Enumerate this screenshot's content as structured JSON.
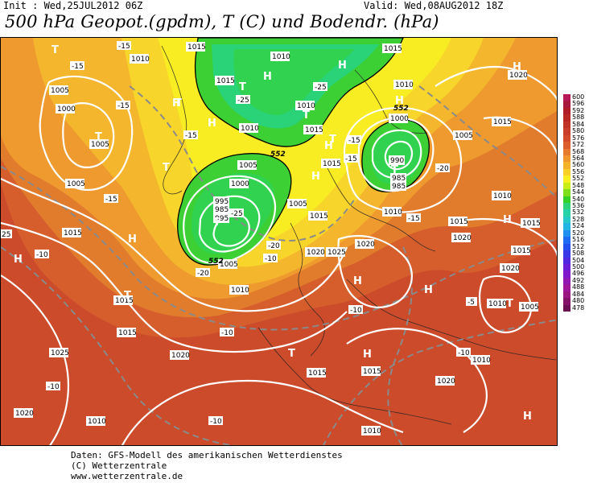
{
  "header": {
    "init": "Init : Wed,25JUL2012 06Z",
    "valid": "Valid: Wed,08AUG2012 18Z",
    "title": "500 hPa Geopot.(gpdm), T (C) und Bodendr. (hPa)"
  },
  "legend": {
    "items": [
      {
        "value": "600",
        "color": "#b4195a"
      },
      {
        "value": "596",
        "color": "#a8183a"
      },
      {
        "value": "592",
        "color": "#b01c25"
      },
      {
        "value": "588",
        "color": "#b82624"
      },
      {
        "value": "584",
        "color": "#c03226"
      },
      {
        "value": "580",
        "color": "#c83e28"
      },
      {
        "value": "576",
        "color": "#d24a2a"
      },
      {
        "value": "572",
        "color": "#dc5e2c"
      },
      {
        "value": "568",
        "color": "#e67a2e"
      },
      {
        "value": "564",
        "color": "#f0962e"
      },
      {
        "value": "560",
        "color": "#f4b22c"
      },
      {
        "value": "556",
        "color": "#f8d028"
      },
      {
        "value": "552",
        "color": "#f8ee20"
      },
      {
        "value": "548",
        "color": "#c8ee18"
      },
      {
        "value": "544",
        "color": "#7ee01c"
      },
      {
        "value": "540",
        "color": "#34d228"
      },
      {
        "value": "536",
        "color": "#2ad278"
      },
      {
        "value": "532",
        "color": "#28d2a8"
      },
      {
        "value": "528",
        "color": "#26c8c8"
      },
      {
        "value": "524",
        "color": "#24b4e4"
      },
      {
        "value": "520",
        "color": "#2090f0"
      },
      {
        "value": "516",
        "color": "#1e6cf4"
      },
      {
        "value": "512",
        "color": "#2450f0"
      },
      {
        "value": "508",
        "color": "#3838e8"
      },
      {
        "value": "504",
        "color": "#5028e0"
      },
      {
        "value": "500",
        "color": "#6a1ed8"
      },
      {
        "value": "496",
        "color": "#8018cc"
      },
      {
        "value": "492",
        "color": "#9218b4"
      },
      {
        "value": "488",
        "color": "#a0189a"
      },
      {
        "value": "484",
        "color": "#9a1880"
      },
      {
        "value": "480",
        "color": "#841468"
      },
      {
        "value": "478",
        "color": "#6c1054"
      }
    ]
  },
  "map": {
    "isobar_labels": [
      {
        "id": "iso-1015-a",
        "text": "1015"
      },
      {
        "id": "iso-1010-a",
        "text": "1010"
      },
      {
        "id": "iso-1005-a",
        "text": "1005"
      },
      {
        "id": "iso-1000-a",
        "text": "1000"
      },
      {
        "id": "iso-1005-b",
        "text": "1005"
      },
      {
        "id": "iso-1015-b",
        "text": "1015"
      },
      {
        "id": "iso-1010-b",
        "text": "1010"
      },
      {
        "id": "iso-1010-c",
        "text": "1010"
      },
      {
        "id": "iso-1015-c",
        "text": "1015"
      },
      {
        "id": "iso-1010-d",
        "text": "1010"
      },
      {
        "id": "iso-1005-c",
        "text": "1005"
      },
      {
        "id": "iso-1000-b",
        "text": "1000"
      },
      {
        "id": "iso-995-a",
        "text": "995"
      },
      {
        "id": "iso-985-a",
        "text": "985"
      },
      {
        "id": "iso-1010-e",
        "text": "1010"
      },
      {
        "id": "iso-1005-d",
        "text": "1005"
      },
      {
        "id": "iso-1000-c",
        "text": "1000"
      },
      {
        "id": "iso-990-a",
        "text": "990"
      },
      {
        "id": "iso-985-b",
        "text": "985"
      },
      {
        "id": "iso-1010-f",
        "text": "1010"
      },
      {
        "id": "iso-1015-d",
        "text": "1015"
      },
      {
        "id": "iso-1015-e",
        "text": "1015"
      },
      {
        "id": "iso-1005-e",
        "text": "1005"
      },
      {
        "id": "iso-995-b",
        "text": "995"
      },
      {
        "id": "iso-985-c",
        "text": "985"
      },
      {
        "id": "iso-1015-f",
        "text": "1015"
      },
      {
        "id": "iso-1010-g",
        "text": "1010"
      },
      {
        "id": "iso-1020-a",
        "text": "1020"
      },
      {
        "id": "iso-1015-g",
        "text": "1015"
      },
      {
        "id": "iso-1010-h",
        "text": "1010"
      },
      {
        "id": "iso-1015-h",
        "text": "1015"
      },
      {
        "id": "iso-1020-b",
        "text": "1020"
      },
      {
        "id": "iso-1025-a",
        "text": "1025"
      },
      {
        "id": "iso-1020-c",
        "text": "1020"
      },
      {
        "id": "iso-1010-i",
        "text": "1010"
      },
      {
        "id": "iso-1015-i",
        "text": "1015"
      },
      {
        "id": "iso-1020-d",
        "text": "1020"
      },
      {
        "id": "iso-1015-j",
        "text": "1015"
      },
      {
        "id": "iso-1010-j",
        "text": "1010"
      },
      {
        "id": "iso-1005-f",
        "text": "1005"
      },
      {
        "id": "iso-1015-k",
        "text": "1015"
      },
      {
        "id": "iso-1005-g",
        "text": "1005"
      },
      {
        "id": "iso-1020-e",
        "text": "1020"
      },
      {
        "id": "iso-1020-f",
        "text": "1020"
      },
      {
        "id": "iso-1010-k",
        "text": "1010"
      },
      {
        "id": "iso-1015-l",
        "text": "1015"
      },
      {
        "id": "iso-1015-m",
        "text": "1015"
      },
      {
        "id": "iso-1005-h",
        "text": "1005"
      },
      {
        "id": "iso-1015-n",
        "text": "1015"
      },
      {
        "id": "iso-1025-b",
        "text": "1025"
      },
      {
        "id": "iso-1020-g",
        "text": "1020"
      },
      {
        "id": "iso-1015-o",
        "text": "1015"
      },
      {
        "id": "iso-1020-h",
        "text": "1020"
      },
      {
        "id": "iso-1010-l",
        "text": "1010"
      }
    ],
    "temp_labels": [
      {
        "id": "t-15-a",
        "text": "-15"
      },
      {
        "id": "t-15-b",
        "text": "-15"
      },
      {
        "id": "t-15-c",
        "text": "-15"
      },
      {
        "id": "t-25-a",
        "text": "-25"
      },
      {
        "id": "t-25-b",
        "text": "-25"
      },
      {
        "id": "t-25-c",
        "text": "-25"
      },
      {
        "id": "t-20-a",
        "text": "-20"
      },
      {
        "id": "t-15-d",
        "text": "-15"
      },
      {
        "id": "t-15-e",
        "text": "-15"
      },
      {
        "id": "t-20-b",
        "text": "-20"
      },
      {
        "id": "t-15-f",
        "text": "-15"
      },
      {
        "id": "t-15-g",
        "text": "-15"
      },
      {
        "id": "t-10-a",
        "text": "-10"
      },
      {
        "id": "t-15-h",
        "text": "-15"
      },
      {
        "id": "t-10-b",
        "text": "-10"
      },
      {
        "id": "t-20-c",
        "text": "-20"
      },
      {
        "id": "t-10-c",
        "text": "-10"
      },
      {
        "id": "t-10-d",
        "text": "-10"
      },
      {
        "id": "t-10-e",
        "text": "-10"
      },
      {
        "id": "t-10-f",
        "text": "-10"
      },
      {
        "id": "t-5-a",
        "text": "-5"
      },
      {
        "id": "t-10-g",
        "text": "-10"
      },
      {
        "id": "t-25-d",
        "text": "25"
      }
    ],
    "geo_labels": [
      {
        "id": "g-552-a",
        "text": "552"
      },
      {
        "id": "g-552-b",
        "text": "552"
      },
      {
        "id": "g-552-c",
        "text": "552"
      }
    ],
    "pressure_centers": [
      {
        "id": "pc-h-1",
        "text": "H"
      },
      {
        "id": "pc-h-2",
        "text": "H"
      },
      {
        "id": "pc-h-3",
        "text": "H"
      },
      {
        "id": "pc-h-4",
        "text": "H"
      },
      {
        "id": "pc-h-5",
        "text": "H"
      },
      {
        "id": "pc-h-6",
        "text": "H"
      },
      {
        "id": "pc-h-7",
        "text": "H"
      },
      {
        "id": "pc-h-8",
        "text": "H"
      },
      {
        "id": "pc-h-9",
        "text": "H"
      },
      {
        "id": "pc-h-10",
        "text": "H"
      },
      {
        "id": "pc-h-11",
        "text": "H"
      },
      {
        "id": "pc-h-12",
        "text": "H"
      },
      {
        "id": "pc-h-13",
        "text": "H"
      },
      {
        "id": "pc-h-14",
        "text": "H"
      },
      {
        "id": "pc-h-15",
        "text": "H"
      },
      {
        "id": "pc-t-1",
        "text": "T"
      },
      {
        "id": "pc-t-2",
        "text": "T"
      },
      {
        "id": "pc-t-3",
        "text": "T"
      },
      {
        "id": "pc-t-4",
        "text": "T"
      },
      {
        "id": "pc-t-5",
        "text": "T"
      },
      {
        "id": "pc-t-6",
        "text": "T"
      },
      {
        "id": "pc-t-7",
        "text": "T"
      },
      {
        "id": "pc-t-8",
        "text": "T"
      },
      {
        "id": "pc-t-9",
        "text": "T"
      },
      {
        "id": "pc-t-10",
        "text": "T"
      },
      {
        "id": "pc-t-11",
        "text": "T"
      },
      {
        "id": "pc-t-12",
        "text": "T"
      }
    ]
  },
  "footer": {
    "line1": "Daten: GFS-Modell des amerikanischen Wetterdienstes",
    "line2": "(C) Wetterzentrale",
    "line3": "www.wetterzentrale.de"
  }
}
